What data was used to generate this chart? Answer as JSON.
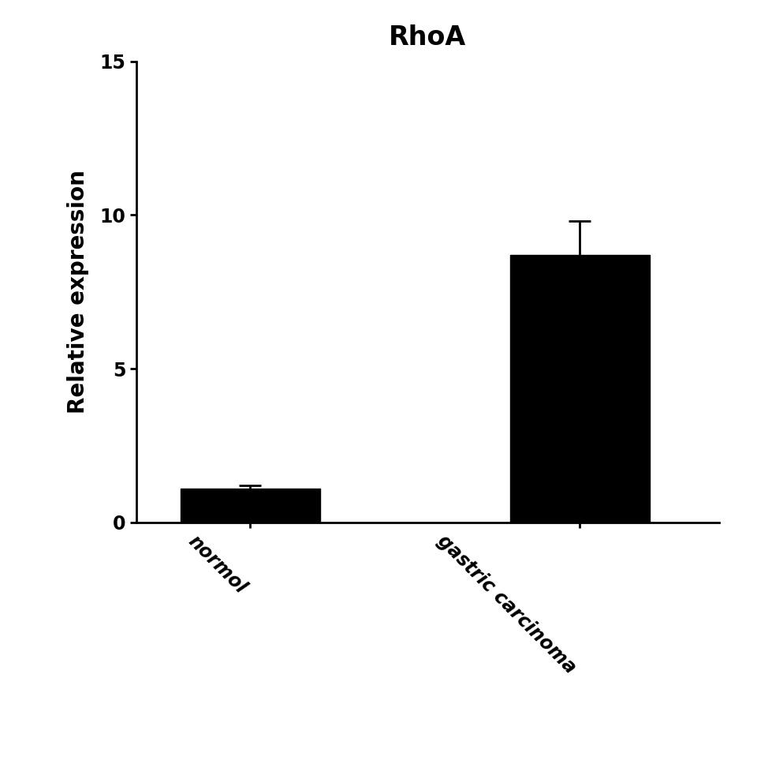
{
  "title": "RhoA",
  "title_fontsize": 24,
  "title_fontweight": "bold",
  "categories": [
    "normol",
    "gastric carcinoma"
  ],
  "values": [
    1.1,
    8.7
  ],
  "errors": [
    0.1,
    1.1
  ],
  "bar_colors": [
    "#000000",
    "#000000"
  ],
  "ylabel": "Relative expression",
  "ylabel_fontsize": 20,
  "ylabel_fontweight": "bold",
  "ylim": [
    0,
    15
  ],
  "yticks": [
    0,
    5,
    10,
    15
  ],
  "bar_width": 0.55,
  "tick_label_fontsize": 17,
  "tick_label_fontweight": "bold",
  "xtick_rotation": -45,
  "background_color": "#ffffff",
  "error_capsize": 10,
  "error_linewidth": 2,
  "error_color": "#000000",
  "x_positions": [
    1,
    2.3
  ],
  "xlim": [
    0.55,
    2.85
  ]
}
